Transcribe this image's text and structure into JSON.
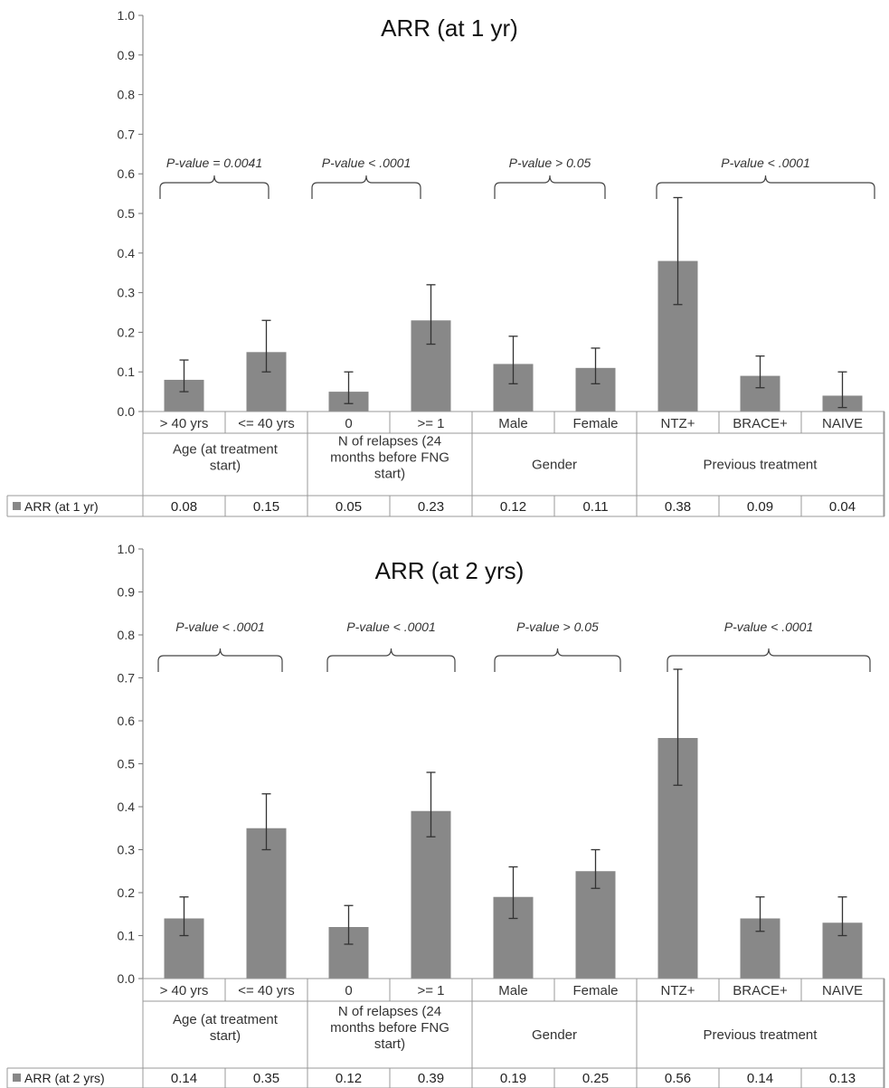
{
  "colors": {
    "bar": "#888888",
    "axis": "#777777",
    "text": "#333333"
  },
  "chart_data": [
    {
      "type": "bar",
      "title": "ARR (at 1 yr)",
      "ylim": [
        0,
        1.0
      ],
      "yticks": [
        "0.0",
        "0.1",
        "0.2",
        "0.3",
        "0.4",
        "0.5",
        "0.6",
        "0.7",
        "0.8",
        "0.9",
        "1.0"
      ],
      "categories": [
        "> 40 yrs",
        "<= 40 yrs",
        "0",
        ">= 1",
        "Male",
        "Female",
        "NTZ+",
        "BRACE+",
        "NAIVE"
      ],
      "groups": [
        {
          "label": "Age (at treatment start)",
          "lines": [
            "Age (at treatment",
            "start)"
          ],
          "p_value": "P-value = 0.0041"
        },
        {
          "label": "N of relapses (24 months before FNG start)",
          "lines": [
            "N of relapses (24",
            "months before FNG",
            "start)"
          ],
          "p_value": "P-value < .0001"
        },
        {
          "label": "Gender",
          "lines": [
            "Gender"
          ],
          "p_value": "P-value > 0.05"
        },
        {
          "label": "Previous treatment",
          "lines": [
            "Previous treatment"
          ],
          "p_value": "P-value < .0001"
        }
      ],
      "series": [
        {
          "name": "ARR (at 1 yr)",
          "values": [
            0.08,
            0.15,
            0.05,
            0.23,
            0.12,
            0.11,
            0.38,
            0.09,
            0.04
          ],
          "value_labels": [
            "0.08",
            "0.15",
            "0.05",
            "0.23",
            "0.12",
            "0.11",
            "0.38",
            "0.09",
            "0.04"
          ],
          "err_low": [
            0.05,
            0.1,
            0.02,
            0.17,
            0.07,
            0.07,
            0.27,
            0.06,
            0.01
          ],
          "err_high": [
            0.13,
            0.23,
            0.1,
            0.32,
            0.19,
            0.16,
            0.54,
            0.14,
            0.1
          ]
        }
      ],
      "grid": false,
      "legend_placement": "data-table-left"
    },
    {
      "type": "bar",
      "title": "ARR (at 2 yrs)",
      "ylim": [
        0,
        1.0
      ],
      "yticks": [
        "0.0",
        "0.1",
        "0.2",
        "0.3",
        "0.4",
        "0.5",
        "0.6",
        "0.7",
        "0.8",
        "0.9",
        "1.0"
      ],
      "categories": [
        "> 40 yrs",
        "<= 40 yrs",
        "0",
        ">= 1",
        "Male",
        "Female",
        "NTZ+",
        "BRACE+",
        "NAIVE"
      ],
      "groups": [
        {
          "label": "Age (at treatment start)",
          "lines": [
            "Age (at treatment",
            "start)"
          ],
          "p_value": "P-value < .0001"
        },
        {
          "label": "N of relapses (24 months before FNG start)",
          "lines": [
            "N of relapses (24",
            "months before FNG",
            "start)"
          ],
          "p_value": "P-value < .0001"
        },
        {
          "label": "Gender",
          "lines": [
            "Gender"
          ],
          "p_value": "P-value > 0.05"
        },
        {
          "label": "Previous treatment",
          "lines": [
            "Previous treatment"
          ],
          "p_value": "P-value < .0001"
        }
      ],
      "series": [
        {
          "name": "ARR (at 2 yrs)",
          "values": [
            0.14,
            0.35,
            0.12,
            0.39,
            0.19,
            0.25,
            0.56,
            0.14,
            0.13
          ],
          "value_labels": [
            "0.14",
            "0.35",
            "0.12",
            "0.39",
            "0.19",
            "0.25",
            "0.56",
            "0.14",
            "0.13"
          ],
          "err_low": [
            0.1,
            0.3,
            0.08,
            0.33,
            0.14,
            0.21,
            0.45,
            0.11,
            0.1
          ],
          "err_high": [
            0.19,
            0.43,
            0.17,
            0.48,
            0.26,
            0.3,
            0.72,
            0.19,
            0.19
          ]
        }
      ],
      "grid": false,
      "legend_placement": "data-table-left"
    }
  ]
}
